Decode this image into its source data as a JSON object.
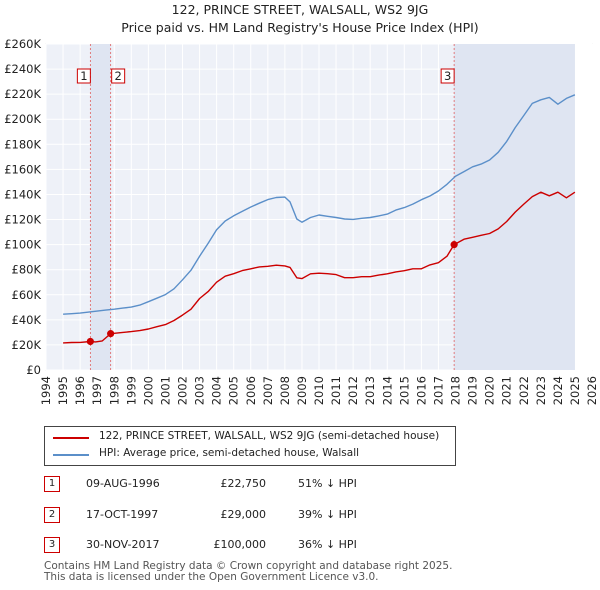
{
  "chart_data": {
    "type": "line",
    "title": "122, PRINCE STREET, WALSALL, WS2 9JG",
    "subtitle": "Price paid vs. HM Land Registry's House Price Index (HPI)",
    "xlim": [
      1994,
      2026
    ],
    "ylim": [
      0,
      260000
    ],
    "x_ticks": [
      "1994",
      "1995",
      "1996",
      "1997",
      "1998",
      "1999",
      "2000",
      "2001",
      "2002",
      "2003",
      "2004",
      "2005",
      "2006",
      "2007",
      "2008",
      "2009",
      "2010",
      "2011",
      "2012",
      "2013",
      "2014",
      "2015",
      "2016",
      "2017",
      "2018",
      "2019",
      "2020",
      "2021",
      "2022",
      "2023",
      "2024",
      "2025",
      "2026"
    ],
    "y_ticks": [
      {
        "value": 0,
        "label": "£0"
      },
      {
        "value": 20000,
        "label": "£20K"
      },
      {
        "value": 40000,
        "label": "£40K"
      },
      {
        "value": 60000,
        "label": "£60K"
      },
      {
        "value": 80000,
        "label": "£80K"
      },
      {
        "value": 100000,
        "label": "£100K"
      },
      {
        "value": 120000,
        "label": "£120K"
      },
      {
        "value": 140000,
        "label": "£140K"
      },
      {
        "value": 160000,
        "label": "£160K"
      },
      {
        "value": 180000,
        "label": "£180K"
      },
      {
        "value": 200000,
        "label": "£200K"
      },
      {
        "value": 220000,
        "label": "£220K"
      },
      {
        "value": 240000,
        "label": "£240K"
      },
      {
        "value": 260000,
        "label": "£260K"
      }
    ],
    "series": [
      {
        "name": "122, PRINCE STREET, WALSALL, WS2 9JG (semi-detached house)",
        "color": "#cc0000",
        "x": [
          1995.0,
          1995.5,
          1996.0,
          1996.6,
          1996.9,
          1997.3,
          1997.79,
          1998.0,
          1998.5,
          1999.0,
          1999.5,
          2000.0,
          2000.5,
          2001.0,
          2001.5,
          2002.0,
          2002.5,
          2003.0,
          2003.5,
          2004.0,
          2004.5,
          2005.0,
          2005.5,
          2006.0,
          2006.5,
          2007.0,
          2007.5,
          2008.0,
          2008.3,
          2008.7,
          2009.0,
          2009.5,
          2010.0,
          2010.5,
          2011.0,
          2011.5,
          2012.0,
          2012.5,
          2013.0,
          2013.5,
          2014.0,
          2014.5,
          2015.0,
          2015.5,
          2016.0,
          2016.5,
          2017.0,
          2017.5,
          2017.92,
          2018.5,
          2019.0,
          2019.5,
          2020.0,
          2020.5,
          2021.0,
          2021.5,
          2022.0,
          2022.5,
          2023.0,
          2023.5,
          2024.0,
          2024.5,
          2025.0
        ],
        "values": [
          21600,
          21900,
          22000,
          22750,
          22400,
          23200,
          29000,
          29300,
          30000,
          30600,
          31400,
          32700,
          34500,
          36200,
          39500,
          43800,
          48500,
          57000,
          62500,
          70000,
          74800,
          76800,
          79300,
          80700,
          82200,
          82700,
          83600,
          83000,
          81800,
          73500,
          72900,
          76700,
          77200,
          76800,
          76100,
          73600,
          73600,
          74400,
          74400,
          75700,
          76700,
          78200,
          79200,
          80700,
          80700,
          83800,
          85600,
          90800,
          100000,
          104300,
          105800,
          107400,
          108900,
          112500,
          118400,
          125900,
          132300,
          138300,
          141800,
          138900,
          141800,
          137300,
          141800
        ]
      },
      {
        "name": "HPI: Average price, semi-detached house, Walsall",
        "color": "#5b8fc9",
        "x": [
          1995.0,
          1995.5,
          1996.0,
          1996.5,
          1997.0,
          1997.5,
          1998.0,
          1998.5,
          1999.0,
          1999.5,
          2000.0,
          2000.5,
          2001.0,
          2001.5,
          2002.0,
          2002.5,
          2003.0,
          2003.5,
          2004.0,
          2004.5,
          2005.0,
          2005.5,
          2006.0,
          2006.5,
          2007.0,
          2007.5,
          2008.0,
          2008.3,
          2008.7,
          2009.0,
          2009.5,
          2010.0,
          2010.5,
          2011.0,
          2011.5,
          2012.0,
          2012.5,
          2013.0,
          2013.5,
          2014.0,
          2014.5,
          2015.0,
          2015.5,
          2016.0,
          2016.5,
          2017.0,
          2017.5,
          2018.0,
          2018.5,
          2019.0,
          2019.5,
          2020.0,
          2020.5,
          2021.0,
          2021.5,
          2022.0,
          2022.5,
          2023.0,
          2023.5,
          2024.0,
          2024.5,
          2025.0
        ],
        "values": [
          44500,
          44900,
          45400,
          46200,
          47000,
          47800,
          48500,
          49400,
          50200,
          51800,
          54500,
          57300,
          60100,
          64800,
          71900,
          79600,
          90800,
          101000,
          111900,
          118800,
          123000,
          126500,
          130000,
          133000,
          135900,
          137600,
          137900,
          134100,
          120400,
          117900,
          121600,
          123600,
          122600,
          121600,
          120400,
          120100,
          121000,
          121600,
          122900,
          124300,
          127500,
          129500,
          132300,
          135800,
          138800,
          142800,
          148100,
          154600,
          158200,
          162100,
          164200,
          167500,
          173600,
          182300,
          193300,
          203000,
          212600,
          215500,
          217400,
          212000,
          216600,
          219500
        ]
      }
    ],
    "sales": [
      {
        "id": "1",
        "x": 1996.6,
        "value": 22750
      },
      {
        "id": "2",
        "x": 1997.79,
        "value": 29000
      },
      {
        "id": "3",
        "x": 2017.92,
        "value": 100000
      }
    ]
  },
  "legend": {
    "property": "122, PRINCE STREET, WALSALL, WS2 9JG (semi-detached house)",
    "hpi": "HPI: Average price, semi-detached house, Walsall"
  },
  "transactions": [
    {
      "num": "1",
      "date": "09-AUG-1996",
      "price": "£22,750",
      "hpi": "51% ↓ HPI"
    },
    {
      "num": "2",
      "date": "17-OCT-1997",
      "price": "£29,000",
      "hpi": "39% ↓ HPI"
    },
    {
      "num": "3",
      "date": "30-NOV-2017",
      "price": "£100,000",
      "hpi": "36% ↓ HPI"
    }
  ],
  "footer": {
    "line1": "Contains HM Land Registry data © Crown copyright and database right 2025.",
    "line2": "This data is licensed under the Open Government Licence v3.0."
  }
}
